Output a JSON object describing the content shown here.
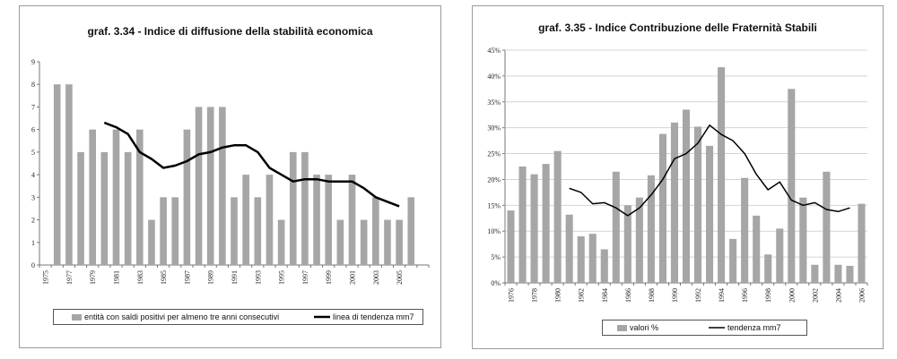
{
  "chart_data": [
    {
      "type": "bar",
      "title": "graf. 3.34 - Indice di diffusione della stabilità economica",
      "categories": [
        "1975",
        "1976",
        "1977",
        "1978",
        "1979",
        "1980",
        "1981",
        "1982",
        "1983",
        "1984",
        "1985",
        "1986",
        "1987",
        "1988",
        "1989",
        "1990",
        "1991",
        "1992",
        "1993",
        "1994",
        "1995",
        "1996",
        "1997",
        "1998",
        "1999",
        "2000",
        "2001",
        "2002",
        "2003",
        "2004",
        "2005",
        "2006",
        "2007"
      ],
      "tick_labels": [
        "1975",
        "1977",
        "1979",
        "1981",
        "1983",
        "1985",
        "1987",
        "1989",
        "1991",
        "1993",
        "1995",
        "1997",
        "1999",
        "2001",
        "2003",
        "2005"
      ],
      "ylim": [
        0,
        9
      ],
      "yticks": [
        "0",
        "1",
        "2",
        "3",
        "4",
        "5",
        "6",
        "7",
        "8",
        "9"
      ],
      "series": [
        {
          "name": "entità con saldi positivi per almeno tre anni consecutivi",
          "kind": "bar",
          "color": "#a6a6a6",
          "values": [
            null,
            8,
            8,
            5,
            6,
            5,
            6,
            5,
            6,
            2,
            3,
            3,
            6,
            7,
            7,
            7,
            3,
            4,
            3,
            4,
            2,
            5,
            5,
            4,
            4,
            2,
            4,
            2,
            3,
            2,
            2,
            3,
            null
          ]
        },
        {
          "name": "linea di tendenza mm7",
          "kind": "line",
          "color": "#000000",
          "values": [
            null,
            null,
            null,
            null,
            null,
            6.3,
            6.1,
            5.8,
            5.0,
            4.7,
            4.3,
            4.4,
            4.6,
            4.9,
            5.0,
            5.2,
            5.3,
            5.3,
            5.0,
            4.3,
            4.0,
            3.7,
            3.8,
            3.8,
            3.7,
            3.7,
            3.7,
            3.4,
            3.0,
            2.8,
            2.6,
            null,
            null
          ]
        }
      ],
      "legend": {
        "bar_label": "entità con saldi positivi per almeno tre anni consecutivi",
        "line_label": "linea di tendenza mm7",
        "position": "bottom"
      }
    },
    {
      "type": "bar",
      "title": "graf. 3.35 - Indice Contribuzione delle Fraternità Stabili",
      "categories": [
        "1976",
        "1977",
        "1978",
        "1979",
        "1980",
        "1981",
        "1982",
        "1983",
        "1984",
        "1985",
        "1986",
        "1987",
        "1988",
        "1989",
        "1990",
        "1991",
        "1992",
        "1993",
        "1994",
        "1995",
        "1996",
        "1997",
        "1998",
        "1999",
        "2000",
        "2001",
        "2002",
        "2003",
        "2004",
        "2005",
        "2006"
      ],
      "tick_labels": [
        "1976",
        "1978",
        "1980",
        "1982",
        "1984",
        "1986",
        "1988",
        "1990",
        "1992",
        "1994",
        "1996",
        "1998",
        "2000",
        "2002",
        "2004",
        "2006"
      ],
      "ylim": [
        0,
        45
      ],
      "yticks": [
        "0%",
        "5%",
        "10%",
        "15%",
        "20%",
        "25%",
        "30%",
        "35%",
        "40%",
        "45%"
      ],
      "series": [
        {
          "name": "valori %",
          "kind": "bar",
          "color": "#a6a6a6",
          "values": [
            14.0,
            22.5,
            21.0,
            23.0,
            25.5,
            13.2,
            9.0,
            9.5,
            6.5,
            21.5,
            15.0,
            16.5,
            20.8,
            28.8,
            31.0,
            33.5,
            30.2,
            26.5,
            41.7,
            8.5,
            20.3,
            13.0,
            5.5,
            10.5,
            37.5,
            16.5,
            3.5,
            21.5,
            3.5,
            3.3,
            15.3
          ]
        },
        {
          "name": "tendenza mm7",
          "kind": "line",
          "color": "#000000",
          "values": [
            null,
            null,
            null,
            null,
            null,
            18.3,
            17.5,
            15.3,
            15.5,
            14.5,
            13.0,
            14.5,
            17.0,
            20.0,
            24.0,
            25.0,
            27.0,
            30.5,
            28.7,
            27.5,
            25.0,
            21.0,
            18.0,
            19.5,
            16.0,
            15.0,
            15.5,
            14.2,
            13.8,
            14.5,
            null
          ]
        }
      ],
      "legend": {
        "bar_label": "valori %",
        "line_label": "tendenza mm7",
        "position": "bottom"
      }
    }
  ]
}
